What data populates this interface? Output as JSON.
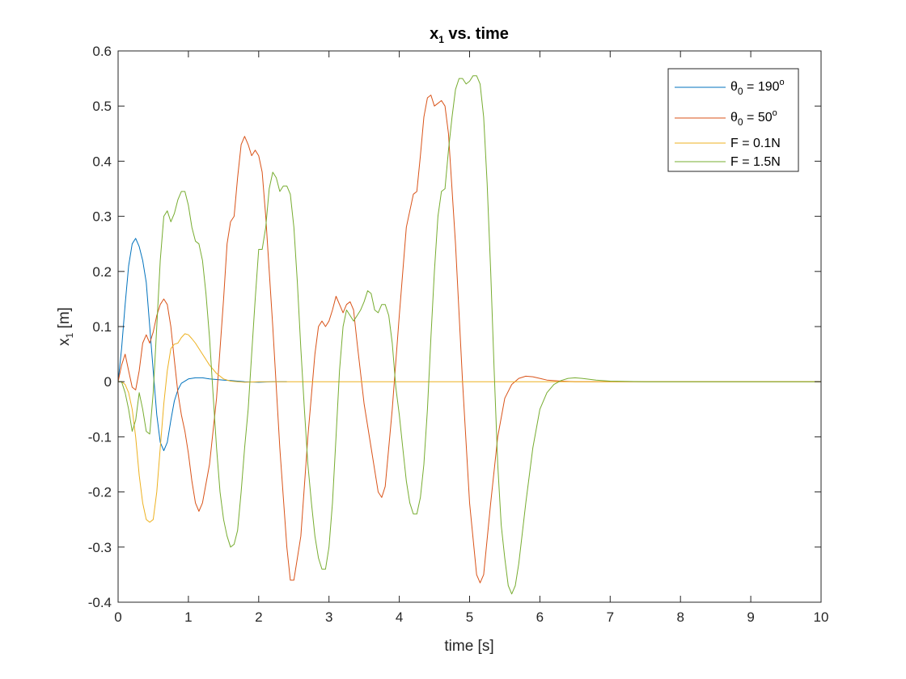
{
  "chart_data": {
    "type": "line",
    "title": {
      "base": "x",
      "sub": "1",
      "rest": " vs. time"
    },
    "xlabel": "time [s]",
    "ylabel": {
      "base": "x",
      "sub": "1",
      "rest": " [m]"
    },
    "xlim": [
      0,
      10
    ],
    "ylim": [
      -0.4,
      0.6
    ],
    "xticks": [
      0,
      1,
      2,
      3,
      4,
      5,
      6,
      7,
      8,
      9,
      10
    ],
    "yticks": [
      -0.4,
      -0.3,
      -0.2,
      -0.1,
      0,
      0.1,
      0.2,
      0.3,
      0.4,
      0.5,
      0.6
    ],
    "grid": false,
    "legend_position": "top-right",
    "series": [
      {
        "legend": {
          "pre": "θ",
          "sub": "0",
          "mid": " = 190",
          "sup": "o"
        },
        "color": "#0072BD",
        "x": [
          0,
          0.05,
          0.1,
          0.15,
          0.2,
          0.25,
          0.3,
          0.35,
          0.4,
          0.45,
          0.5,
          0.55,
          0.6,
          0.65,
          0.7,
          0.75,
          0.8,
          0.85,
          0.9,
          1.0,
          1.1,
          1.2,
          1.3,
          1.4,
          1.5,
          1.6,
          1.8,
          2.0,
          2.2,
          2.4
        ],
        "y": [
          0,
          0.06,
          0.14,
          0.21,
          0.25,
          0.26,
          0.245,
          0.22,
          0.18,
          0.1,
          0.02,
          -0.06,
          -0.11,
          -0.125,
          -0.11,
          -0.07,
          -0.035,
          -0.015,
          -0.003,
          0.005,
          0.007,
          0.007,
          0.005,
          0.004,
          0.003,
          0.002,
          0.0,
          -0.001,
          0.0,
          0.0
        ]
      },
      {
        "legend": {
          "pre": "θ",
          "sub": "0",
          "mid": " = 50",
          "sup": "o"
        },
        "color": "#D95319",
        "x": [
          0,
          0.05,
          0.1,
          0.15,
          0.2,
          0.25,
          0.3,
          0.35,
          0.4,
          0.45,
          0.5,
          0.55,
          0.6,
          0.65,
          0.7,
          0.75,
          0.8,
          0.85,
          0.9,
          0.95,
          1.0,
          1.05,
          1.1,
          1.15,
          1.2,
          1.3,
          1.4,
          1.5,
          1.55,
          1.6,
          1.65,
          1.7,
          1.75,
          1.8,
          1.85,
          1.9,
          1.95,
          2.0,
          2.05,
          2.1,
          2.2,
          2.3,
          2.4,
          2.45,
          2.5,
          2.6,
          2.7,
          2.8,
          2.85,
          2.9,
          2.95,
          3.0,
          3.05,
          3.1,
          3.2,
          3.25,
          3.3,
          3.35,
          3.4,
          3.5,
          3.6,
          3.7,
          3.75,
          3.8,
          3.9,
          4.0,
          4.1,
          4.2,
          4.25,
          4.3,
          4.35,
          4.4,
          4.45,
          4.5,
          4.55,
          4.6,
          4.65,
          4.7,
          4.8,
          4.9,
          5.0,
          5.1,
          5.15,
          5.2,
          5.3,
          5.4,
          5.5,
          5.6,
          5.7,
          5.8,
          5.9,
          6.0,
          6.1,
          6.3,
          6.5,
          7.0,
          7.5,
          8.0,
          10.0
        ],
        "y": [
          0,
          0.03,
          0.05,
          0.02,
          -0.01,
          -0.015,
          0.02,
          0.07,
          0.085,
          0.07,
          0.09,
          0.12,
          0.14,
          0.15,
          0.14,
          0.1,
          0.04,
          -0.02,
          -0.06,
          -0.09,
          -0.13,
          -0.18,
          -0.22,
          -0.235,
          -0.22,
          -0.15,
          -0.03,
          0.15,
          0.25,
          0.29,
          0.3,
          0.37,
          0.43,
          0.445,
          0.43,
          0.41,
          0.42,
          0.41,
          0.38,
          0.3,
          0.1,
          -0.12,
          -0.3,
          -0.36,
          -0.36,
          -0.28,
          -0.1,
          0.05,
          0.1,
          0.11,
          0.1,
          0.11,
          0.13,
          0.155,
          0.125,
          0.14,
          0.145,
          0.13,
          0.07,
          -0.04,
          -0.12,
          -0.2,
          -0.21,
          -0.19,
          -0.05,
          0.12,
          0.28,
          0.34,
          0.345,
          0.41,
          0.48,
          0.515,
          0.52,
          0.5,
          0.505,
          0.51,
          0.5,
          0.45,
          0.25,
          0.0,
          -0.22,
          -0.35,
          -0.365,
          -0.35,
          -0.22,
          -0.1,
          -0.03,
          -0.005,
          0.006,
          0.01,
          0.009,
          0.006,
          0.003,
          0.001,
          0.0,
          0.0,
          0.0,
          0.0,
          0.0
        ]
      },
      {
        "legend": {
          "pre": "F = 0.1N",
          "sub": "",
          "mid": "",
          "sup": ""
        },
        "color": "#EDB120",
        "x": [
          0,
          0.05,
          0.1,
          0.15,
          0.2,
          0.25,
          0.3,
          0.35,
          0.4,
          0.45,
          0.5,
          0.55,
          0.6,
          0.65,
          0.7,
          0.75,
          0.8,
          0.85,
          0.9,
          0.95,
          1.0,
          1.05,
          1.1,
          1.2,
          1.3,
          1.4,
          1.5,
          1.6,
          1.7,
          1.8,
          2.0,
          2.2,
          2.5,
          3.0,
          4.0,
          5.0,
          6.0,
          7.0,
          8.0,
          9.0,
          10.0
        ],
        "y": [
          0,
          0.0,
          -0.005,
          -0.02,
          -0.05,
          -0.1,
          -0.17,
          -0.22,
          -0.25,
          -0.255,
          -0.25,
          -0.2,
          -0.12,
          -0.04,
          0.02,
          0.06,
          0.068,
          0.07,
          0.08,
          0.087,
          0.085,
          0.078,
          0.07,
          0.05,
          0.03,
          0.015,
          0.005,
          0.001,
          0.0,
          -0.001,
          0.0,
          0.0,
          0.0,
          0.0,
          0.0,
          0.0,
          0.0,
          0.0,
          0.0,
          0.0,
          0.0
        ]
      },
      {
        "legend": {
          "pre": "F = 1.5N",
          "sub": "",
          "mid": "",
          "sup": ""
        },
        "color": "#77AC30",
        "x": [
          0,
          0.05,
          0.1,
          0.15,
          0.2,
          0.25,
          0.3,
          0.35,
          0.4,
          0.45,
          0.5,
          0.55,
          0.6,
          0.65,
          0.7,
          0.75,
          0.8,
          0.85,
          0.9,
          0.95,
          1.0,
          1.05,
          1.1,
          1.15,
          1.2,
          1.25,
          1.3,
          1.35,
          1.4,
          1.45,
          1.5,
          1.55,
          1.6,
          1.65,
          1.7,
          1.75,
          1.8,
          1.85,
          1.9,
          1.95,
          2.0,
          2.05,
          2.1,
          2.15,
          2.2,
          2.25,
          2.3,
          2.35,
          2.4,
          2.45,
          2.5,
          2.55,
          2.6,
          2.65,
          2.7,
          2.75,
          2.8,
          2.85,
          2.9,
          2.95,
          3.0,
          3.05,
          3.1,
          3.15,
          3.2,
          3.25,
          3.3,
          3.35,
          3.4,
          3.45,
          3.5,
          3.55,
          3.6,
          3.65,
          3.7,
          3.75,
          3.8,
          3.85,
          3.9,
          3.95,
          4.0,
          4.05,
          4.1,
          4.15,
          4.2,
          4.25,
          4.3,
          4.35,
          4.4,
          4.45,
          4.5,
          4.55,
          4.6,
          4.65,
          4.7,
          4.75,
          4.8,
          4.85,
          4.9,
          4.95,
          5.0,
          5.05,
          5.1,
          5.15,
          5.2,
          5.25,
          5.3,
          5.35,
          5.4,
          5.45,
          5.5,
          5.55,
          5.6,
          5.65,
          5.7,
          5.8,
          5.9,
          6.0,
          6.1,
          6.2,
          6.3,
          6.4,
          6.5,
          6.6,
          6.8,
          7.0,
          7.5,
          8.0,
          10.0
        ],
        "y": [
          0,
          0.0,
          -0.02,
          -0.05,
          -0.09,
          -0.07,
          -0.02,
          -0.05,
          -0.09,
          -0.095,
          -0.02,
          0.1,
          0.22,
          0.3,
          0.31,
          0.29,
          0.305,
          0.33,
          0.345,
          0.345,
          0.32,
          0.28,
          0.255,
          0.25,
          0.22,
          0.16,
          0.08,
          -0.02,
          -0.12,
          -0.2,
          -0.25,
          -0.28,
          -0.3,
          -0.295,
          -0.27,
          -0.2,
          -0.12,
          -0.05,
          0.05,
          0.15,
          0.24,
          0.24,
          0.28,
          0.35,
          0.38,
          0.37,
          0.345,
          0.355,
          0.355,
          0.34,
          0.28,
          0.18,
          0.06,
          -0.05,
          -0.15,
          -0.22,
          -0.28,
          -0.32,
          -0.34,
          -0.34,
          -0.3,
          -0.22,
          -0.1,
          0.02,
          0.1,
          0.13,
          0.12,
          0.11,
          0.12,
          0.13,
          0.145,
          0.165,
          0.16,
          0.13,
          0.125,
          0.14,
          0.14,
          0.12,
          0.07,
          -0.01,
          -0.06,
          -0.12,
          -0.18,
          -0.22,
          -0.24,
          -0.24,
          -0.21,
          -0.15,
          -0.05,
          0.08,
          0.2,
          0.3,
          0.345,
          0.35,
          0.42,
          0.48,
          0.53,
          0.55,
          0.55,
          0.54,
          0.545,
          0.555,
          0.555,
          0.54,
          0.48,
          0.36,
          0.2,
          0.02,
          -0.15,
          -0.26,
          -0.32,
          -0.37,
          -0.385,
          -0.37,
          -0.33,
          -0.22,
          -0.12,
          -0.05,
          -0.02,
          -0.005,
          0.002,
          0.006,
          0.007,
          0.006,
          0.003,
          0.001,
          0.0,
          0.0,
          0.0
        ]
      }
    ]
  }
}
